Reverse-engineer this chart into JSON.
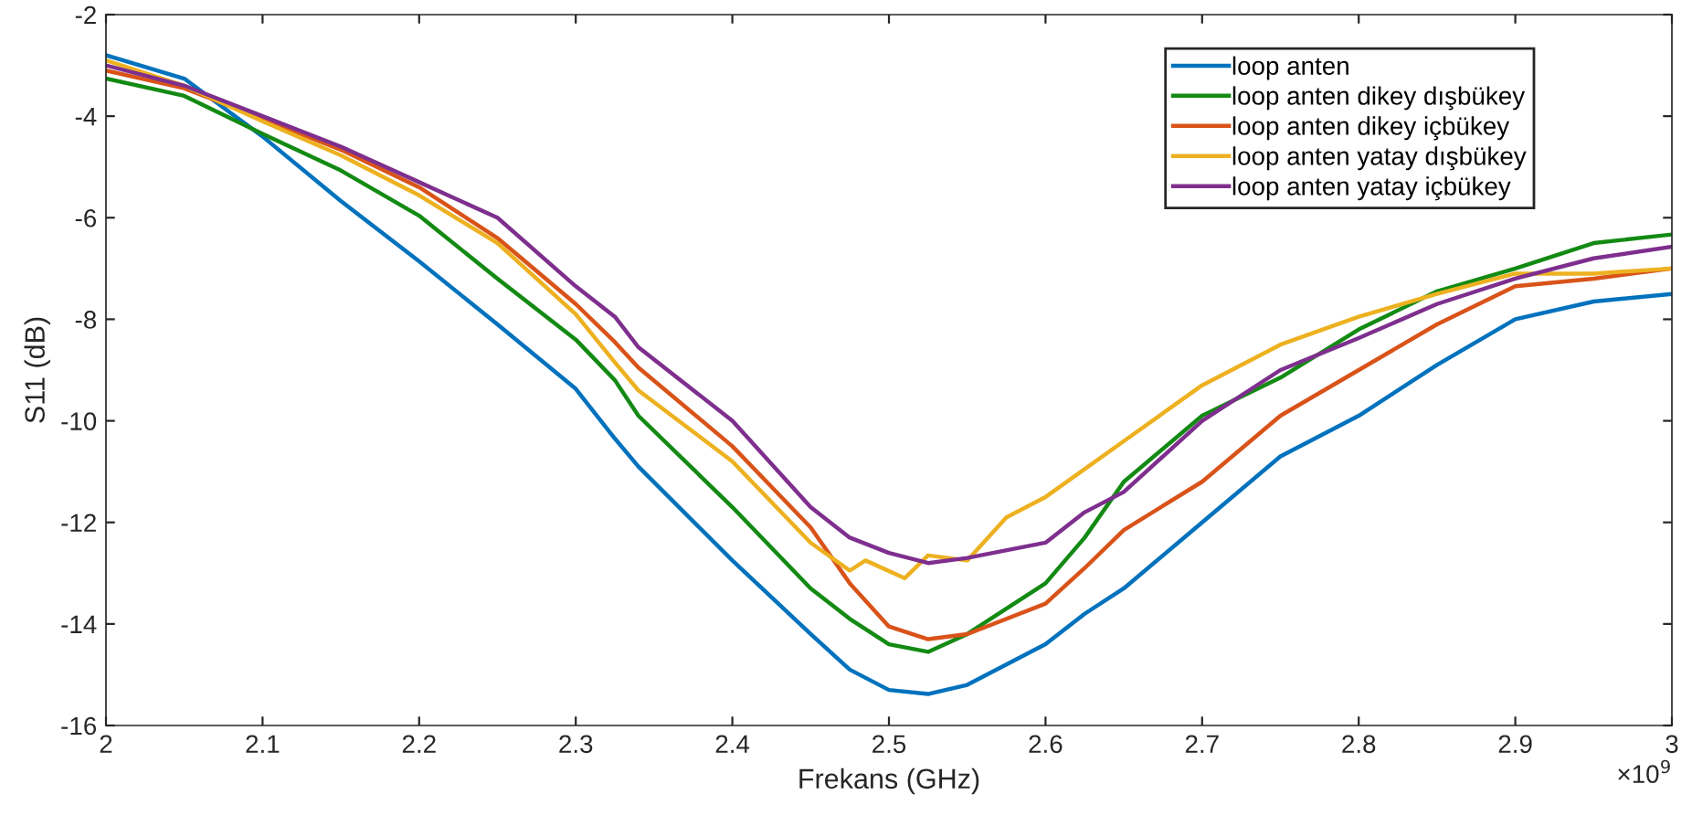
{
  "chart_data": {
    "type": "line",
    "xlabel": "Frekans (GHz)",
    "ylabel": "S11 (dB)",
    "x": [
      2,
      2.05,
      2.1,
      2.15,
      2.2,
      2.25,
      2.3,
      2.325,
      2.34,
      2.4,
      2.45,
      2.475,
      2.5,
      2.525,
      2.55,
      2.6,
      2.625,
      2.65,
      2.7,
      2.75,
      2.8,
      2.85,
      2.9,
      2.95,
      3.0
    ],
    "series": [
      {
        "name": "loop anten",
        "color": "#0072bd",
        "values": [
          -2.8,
          -3.26,
          -4.4,
          -5.67,
          -6.86,
          -8.1,
          -9.37,
          -10.35,
          -10.9,
          -12.75,
          -14.2,
          -14.9,
          -15.3,
          -15.38,
          -15.2,
          -14.4,
          -13.8,
          -13.3,
          -12.0,
          -10.7,
          -9.9,
          -8.9,
          -8.0,
          -7.65,
          -7.5
        ]
      },
      {
        "name": "loop anten dikey dışbükey",
        "color": "#138a13",
        "values": [
          -3.26,
          -3.6,
          -4.35,
          -5.07,
          -5.96,
          -7.2,
          -8.4,
          -9.2,
          -9.9,
          -11.7,
          -13.3,
          -13.9,
          -14.4,
          -14.55,
          -14.2,
          -13.2,
          -12.3,
          -11.2,
          -9.9,
          -9.15,
          -8.2,
          -7.45,
          -7.0,
          -6.5,
          -6.33
        ]
      },
      {
        "name": "loop anten dikey içbükey",
        "color": "#d95319",
        "values": [
          -3.1,
          -3.45,
          -4.05,
          -4.66,
          -5.4,
          -6.4,
          -7.7,
          -8.45,
          -8.95,
          -10.5,
          -12.1,
          -13.2,
          -14.05,
          -14.3,
          -14.2,
          -13.6,
          -12.9,
          -12.15,
          -11.2,
          -9.9,
          -9.0,
          -8.1,
          -7.35,
          -7.2,
          -7.0
        ]
      },
      {
        "name": "loop anten yatay dışbükey",
        "color": "#edb120",
        "x": [
          2,
          2.05,
          2.1,
          2.15,
          2.2,
          2.25,
          2.3,
          2.325,
          2.34,
          2.4,
          2.45,
          2.475,
          2.485,
          2.51,
          2.525,
          2.55,
          2.575,
          2.6,
          2.65,
          2.7,
          2.75,
          2.8,
          2.85,
          2.9,
          2.95,
          3.0
        ],
        "values": [
          -2.9,
          -3.4,
          -4.1,
          -4.77,
          -5.56,
          -6.5,
          -7.9,
          -8.85,
          -9.4,
          -10.8,
          -12.4,
          -12.95,
          -12.75,
          -13.1,
          -12.65,
          -12.75,
          -11.9,
          -11.5,
          -10.4,
          -9.3,
          -8.5,
          -7.95,
          -7.5,
          -7.1,
          -7.1,
          -7.0
        ]
      },
      {
        "name": "loop anten yatay içbükey",
        "color": "#7e2f8e",
        "values": [
          -3.0,
          -3.4,
          -4.0,
          -4.6,
          -5.3,
          -6.0,
          -7.35,
          -7.95,
          -8.55,
          -10.0,
          -11.7,
          -12.3,
          -12.6,
          -12.8,
          -12.7,
          -12.4,
          -11.8,
          -11.4,
          -10.0,
          -9.0,
          -8.37,
          -7.7,
          -7.2,
          -6.8,
          -6.57
        ]
      }
    ],
    "xlim": [
      2,
      3
    ],
    "xticks": [
      2,
      2.1,
      2.2,
      2.3,
      2.4,
      2.5,
      2.6,
      2.7,
      2.8,
      2.9,
      3
    ],
    "ylim": [
      -16,
      -2
    ],
    "yticks": [
      -16,
      -14,
      -12,
      -10,
      -8,
      -6,
      -4,
      -2
    ],
    "legend": "top right",
    "grid": false,
    "marker": "none",
    "line_style": "solid",
    "annotations": [
      "×10$^{9}$"
    ]
  }
}
